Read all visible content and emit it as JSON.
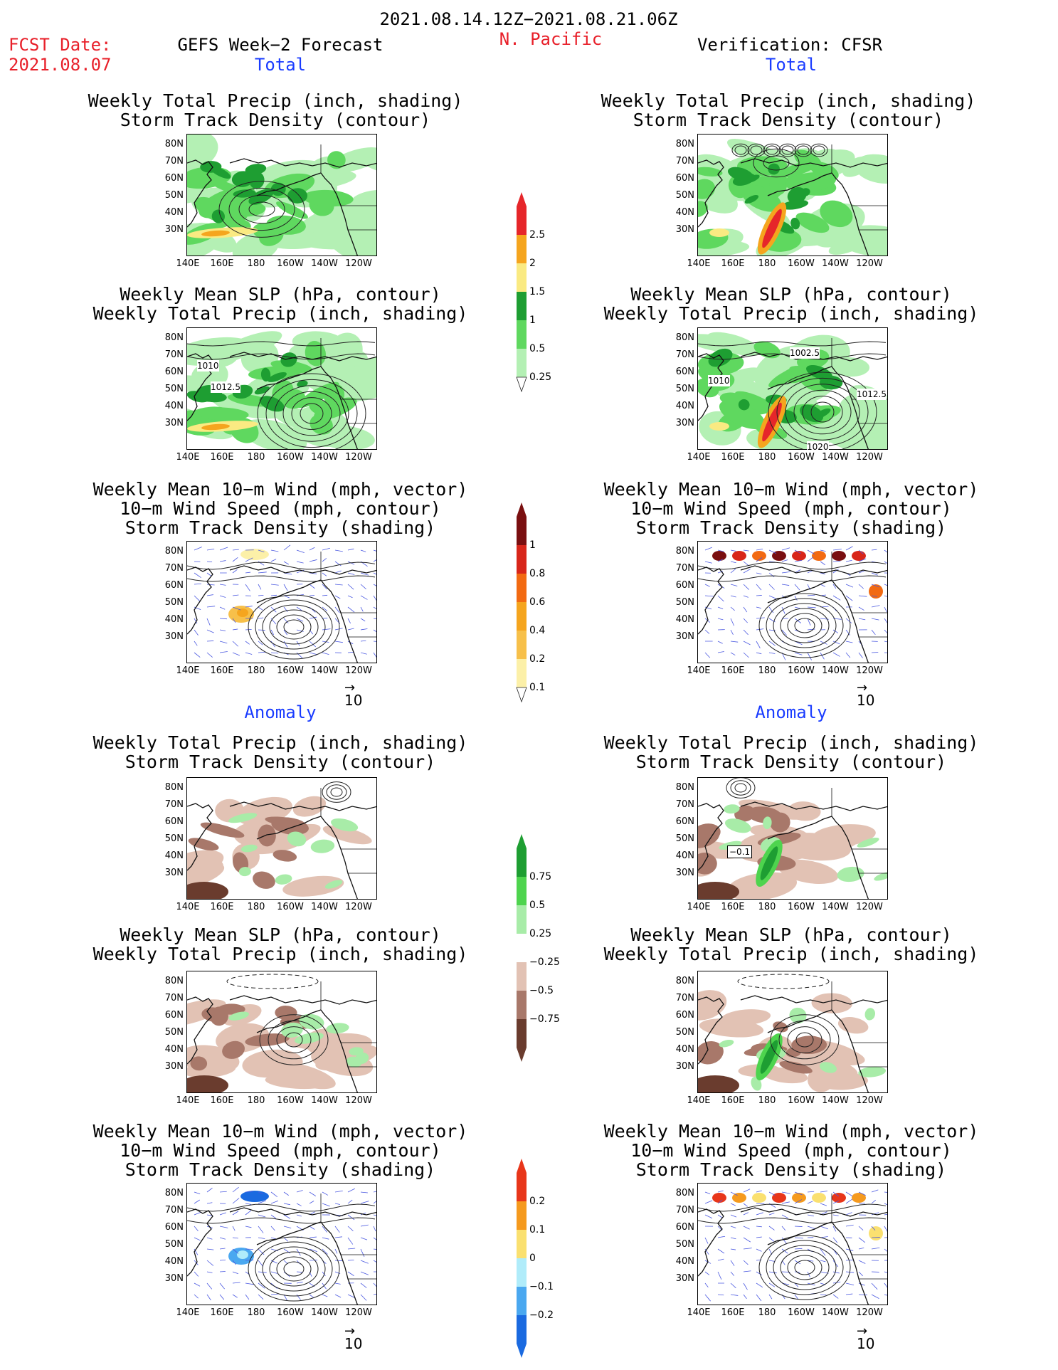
{
  "header": {
    "date_range": "2021.08.14.12Z−2021.08.21.06Z",
    "fcst_label": "FCST Date:",
    "fcst_date": "2021.08.07",
    "left_title": "GEFS Week−2 Forecast",
    "region": "N. Pacific",
    "right_title": "Verification: CFSR",
    "total_label": "Total",
    "anomaly_label": "Anomaly"
  },
  "titles": {
    "precip_storm": [
      "Weekly Total Precip (inch, shading)",
      "Storm Track Density (contour)"
    ],
    "slp_precip": [
      "Weekly Mean SLP (hPa, contour)",
      "Weekly Total Precip (inch, shading)"
    ],
    "wind_storm": [
      "Weekly Mean 10−m Wind (mph, vector)",
      "10−m Wind Speed (mph, contour)",
      "Storm Track Density (shading)"
    ]
  },
  "axes": {
    "lat_labels": [
      "80N",
      "70N",
      "60N",
      "50N",
      "40N",
      "30N"
    ],
    "lon_labels": [
      "140E",
      "160E",
      "180",
      "160W",
      "140W",
      "120W"
    ]
  },
  "vector_reference": "10",
  "contour_labels": {
    "fcst_slp": [
      "1010",
      "1012.5"
    ],
    "cfsr_slp": [
      "1002.5",
      "1010",
      "1012.5",
      "1020"
    ],
    "cfsr_precip_anom": [
      "−0.1"
    ]
  },
  "colorbars": {
    "precip_total": {
      "labels": [
        "2.5",
        "2",
        "1.5",
        "1",
        "0.5",
        "0.25"
      ],
      "colors": [
        "#e6262a",
        "#f5a51e",
        "#faea82",
        "#1e9e32",
        "#5fd85f",
        "#b4f0b4"
      ]
    },
    "storm_total": {
      "labels": [
        "1",
        "0.8",
        "0.6",
        "0.4",
        "0.2",
        "0.1"
      ],
      "colors": [
        "#7a0f10",
        "#d8261a",
        "#f26a12",
        "#f5a51e",
        "#f7c04a",
        "#fcf0a8"
      ]
    },
    "precip_anom": {
      "labels": [
        "0.75",
        "0.5",
        "0.25",
        "−0.25",
        "−0.5",
        "−0.75"
      ],
      "colors": [
        "#1e9e32",
        "#4ed44e",
        "#a8eca8",
        "#ffffff",
        "#e2c2b4",
        "#a8786a",
        "#6a3c2e"
      ]
    },
    "storm_anom": {
      "labels": [
        "0.2",
        "0.1",
        "0",
        "−0.1",
        "−0.2"
      ],
      "colors": [
        "#e8361a",
        "#f59a1e",
        "#fae070",
        "#b0ecfa",
        "#4aa8f0",
        "#1a6ae0"
      ]
    }
  }
}
